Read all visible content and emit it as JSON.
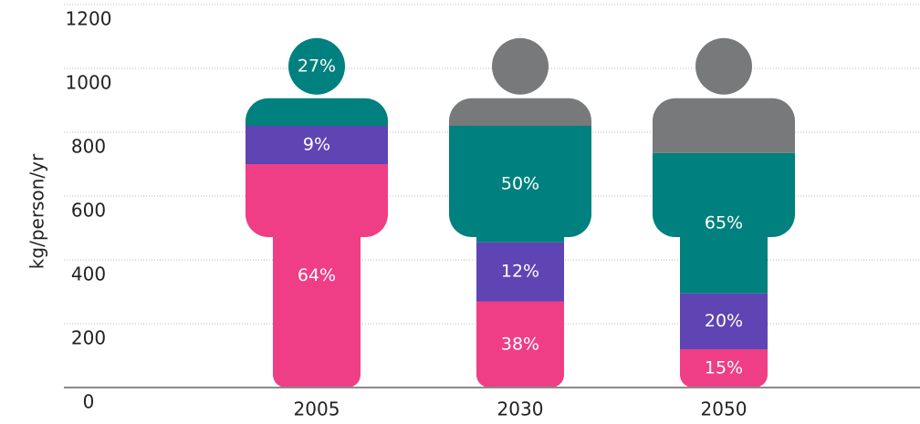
{
  "chart_data": {
    "type": "pictogram-stacked-bar",
    "ylabel": "kg/person/yr",
    "categories": [
      "2005",
      "2030",
      "2050"
    ],
    "series": [
      {
        "color": "#ef3e85",
        "values": [
          700,
          270,
          120
        ],
        "labels": [
          "64%",
          "38%",
          "15%"
        ]
      },
      {
        "color": "#5e45b3",
        "values": [
          120,
          185,
          175
        ],
        "labels": [
          "9%",
          "12%",
          "20%"
        ]
      },
      {
        "color": "#00807e",
        "values": [
          275,
          365,
          440
        ],
        "labels": [
          "27%",
          "50%",
          "65%"
        ]
      },
      {
        "color": "#77797b",
        "values": [
          0,
          275,
          360
        ],
        "labels": [
          null,
          null,
          null
        ]
      }
    ],
    "ylim": [
      0,
      1200
    ],
    "yticks": [
      0,
      200,
      400,
      600,
      800,
      1000,
      1200
    ],
    "grid": true
  }
}
